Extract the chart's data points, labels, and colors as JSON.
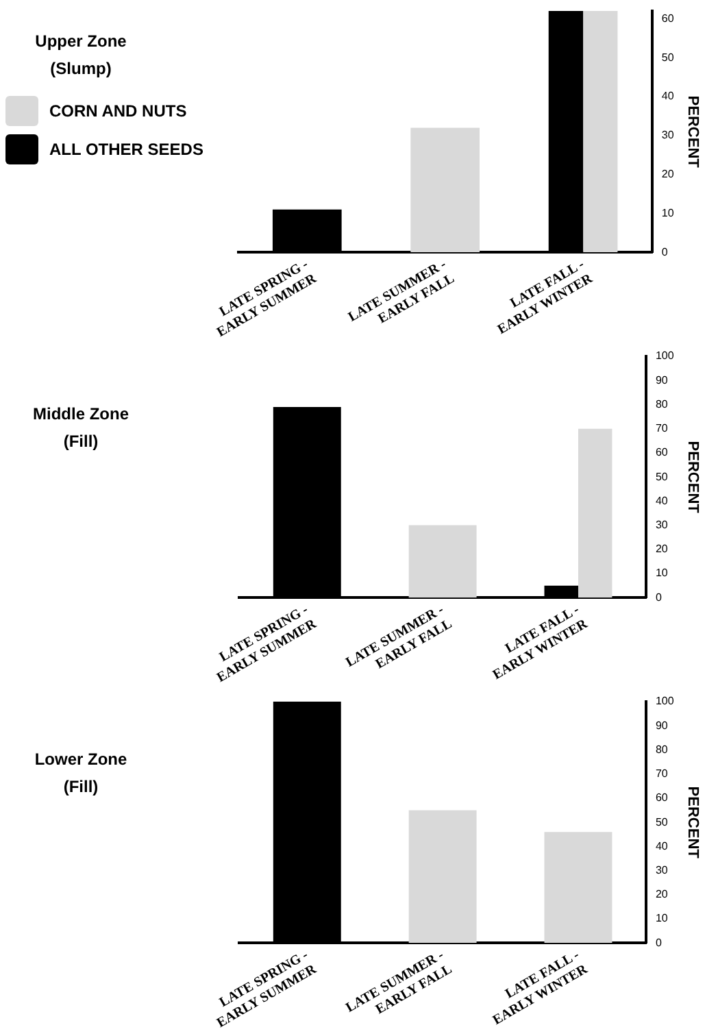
{
  "chart_data": [
    {
      "type": "bar",
      "title": "Upper Zone (Slump)",
      "ylabel": "PERCENT",
      "categories": [
        "LATE SPRING - EARLY SUMMER",
        "LATE SUMMER - EARLY FALL",
        "LATE FALL - EARLY WINTER"
      ],
      "series": [
        {
          "name": "ALL OTHER SEEDS",
          "color": "#000000",
          "values": [
            11,
            null,
            62
          ]
        },
        {
          "name": "CORN AND NUTS",
          "color": "#d9d9d9",
          "values": [
            null,
            32,
            62
          ]
        }
      ],
      "ylim": [
        0,
        62
      ],
      "yticks": [
        0,
        10,
        20,
        30,
        40,
        50,
        60
      ],
      "grid": false,
      "legend": "left"
    },
    {
      "type": "bar",
      "title": "Middle Zone (Fill)",
      "ylabel": "PERCENT",
      "categories": [
        "LATE SPRING - EARLY SUMMER",
        "LATE SUMMER - EARLY FALL",
        "LATE FALL - EARLY WINTER"
      ],
      "series": [
        {
          "color": "#000000",
          "values": [
            79,
            null,
            5
          ]
        },
        {
          "color": "#d9d9d9",
          "values": [
            null,
            30,
            70
          ]
        }
      ],
      "ylim": [
        0,
        100
      ],
      "yticks": [
        0,
        10,
        20,
        30,
        40,
        50,
        60,
        70,
        80,
        90,
        100
      ],
      "grid": false
    },
    {
      "type": "bar",
      "title": "Lower Zone (Fill)",
      "ylabel": "PERCENT",
      "categories": [
        "LATE SPRING - EARLY SUMMER",
        "LATE SUMMER - EARLY FALL",
        "LATE FALL - EARLY WINTER"
      ],
      "series": [
        {
          "color": "#000000",
          "values": [
            100,
            null,
            null
          ]
        },
        {
          "color": "#d9d9d9",
          "values": [
            null,
            55,
            46
          ]
        }
      ],
      "ylim": [
        0,
        100
      ],
      "yticks": [
        0,
        10,
        20,
        30,
        40,
        50,
        60,
        70,
        80,
        90,
        100
      ],
      "grid": false
    }
  ]
}
